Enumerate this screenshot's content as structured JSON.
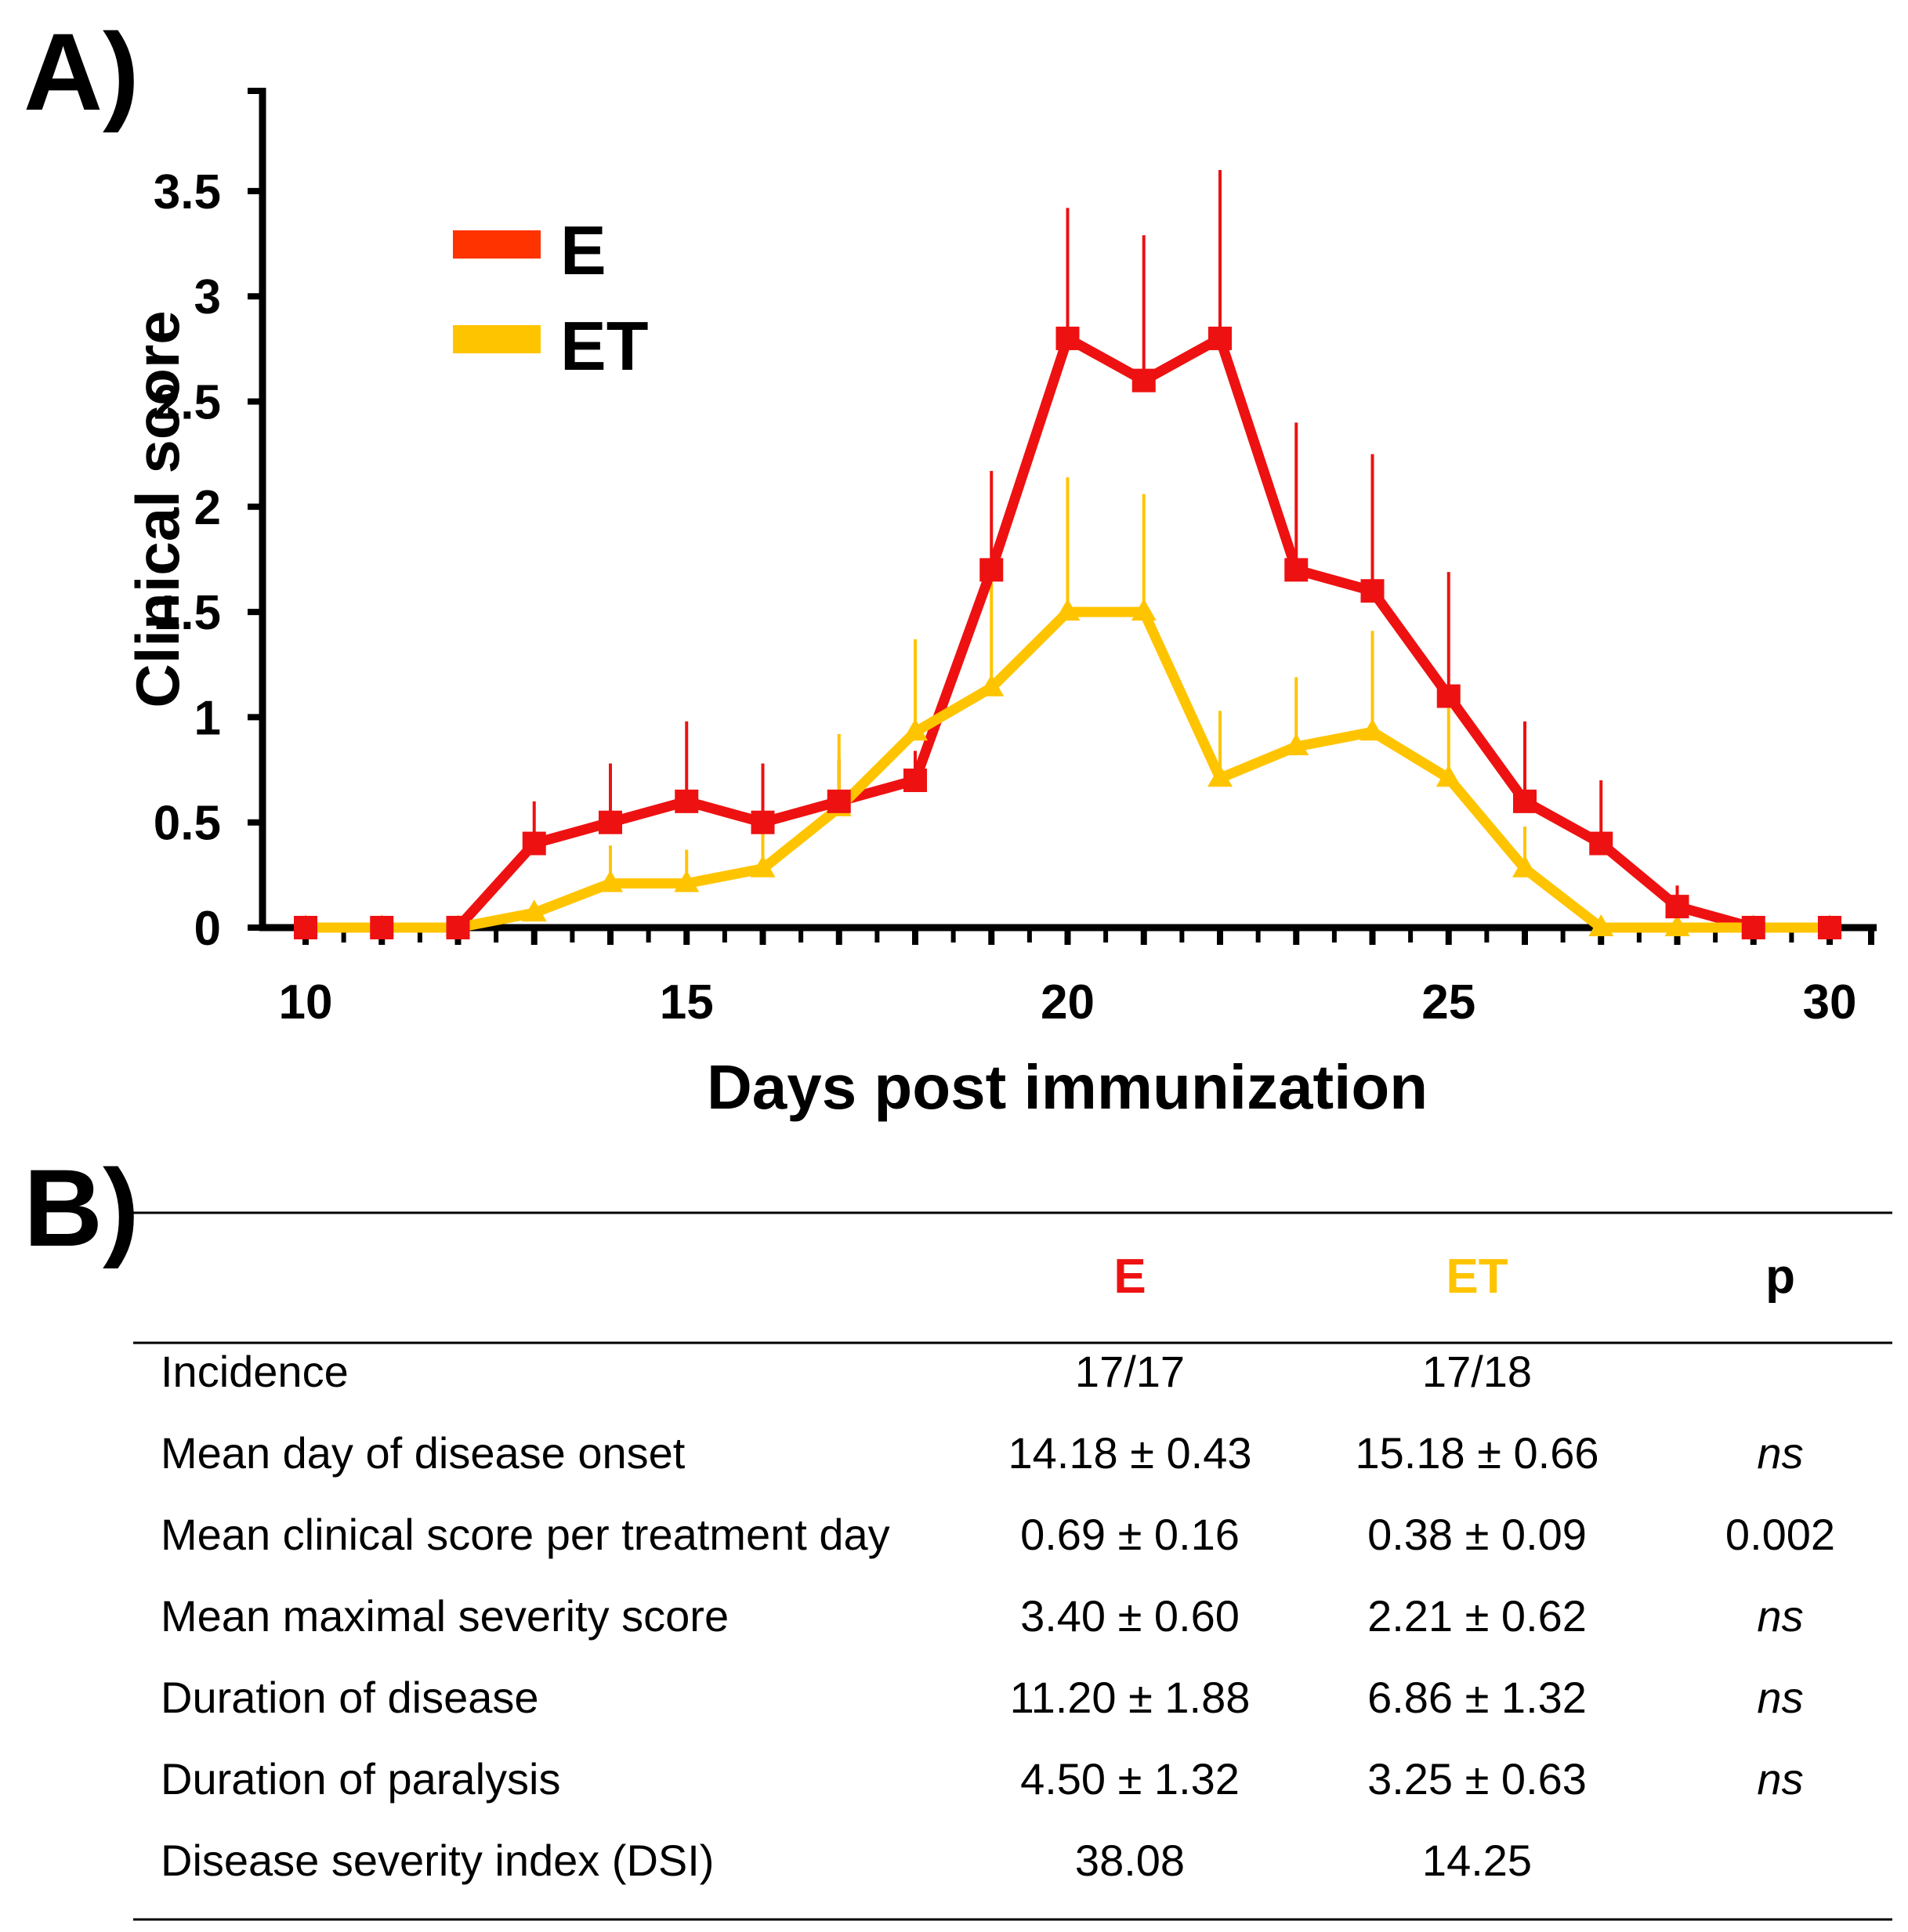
{
  "panel_a_label": "A)",
  "panel_b_label": "B)",
  "chart_data": {
    "type": "line",
    "xlabel": "Days post immunization",
    "ylabel": "Clinical score",
    "xlim": [
      9.5,
      30.5
    ],
    "ylim": [
      0,
      4
    ],
    "x_ticks": [
      10,
      15,
      20,
      25,
      30
    ],
    "y_ticks": [
      0,
      0.5,
      1,
      1.5,
      2,
      2.5,
      3,
      3.5
    ],
    "y_tick_labels": [
      "0",
      "0.5",
      "1",
      "1.5",
      "2",
      "2.5",
      "3",
      "3.5"
    ],
    "x": [
      10,
      11,
      12,
      13,
      14,
      15,
      16,
      17,
      18,
      19,
      20,
      21,
      22,
      23,
      24,
      25,
      26,
      27,
      28,
      29,
      30
    ],
    "series": [
      {
        "name": "E",
        "color": "#ee1111",
        "marker": "square",
        "values": [
          0,
          0,
          0,
          0.4,
          0.5,
          0.6,
          0.5,
          0.6,
          0.7,
          1.7,
          2.8,
          2.6,
          2.8,
          1.7,
          1.6,
          1.1,
          0.6,
          0.4,
          0.1,
          0,
          0
        ],
        "error": [
          0,
          0,
          0,
          0.2,
          0.28,
          0.38,
          0.28,
          0.2,
          0.14,
          0.47,
          0.62,
          0.69,
          0.8,
          0.7,
          0.65,
          0.59,
          0.38,
          0.3,
          0.1,
          0,
          0
        ]
      },
      {
        "name": "ET",
        "color": "#ffc400",
        "marker": "triangle",
        "values": [
          0,
          0,
          0,
          0.07,
          0.21,
          0.21,
          0.28,
          0.57,
          0.93,
          1.14,
          1.5,
          1.5,
          0.71,
          0.86,
          0.93,
          0.71,
          0.28,
          0,
          0,
          0,
          0
        ],
        "error": [
          0,
          0,
          0,
          0.05,
          0.18,
          0.16,
          0.2,
          0.35,
          0.44,
          0.5,
          0.64,
          0.56,
          0.32,
          0.33,
          0.48,
          0.4,
          0.2,
          0,
          0,
          0,
          0
        ]
      }
    ],
    "legend": [
      "E",
      "ET"
    ],
    "legend_position": "top-left"
  },
  "table": {
    "headers": {
      "e": "E",
      "et": "ET",
      "p": "p"
    },
    "header_colors": {
      "e": "#ee1111",
      "et": "#ffc400"
    },
    "rows": [
      {
        "label": "Incidence",
        "e": "17/17",
        "et": "17/18",
        "p": ""
      },
      {
        "label": "Mean day of disease onset",
        "e": "14.18 ± 0.43",
        "et": "15.18 ± 0.66",
        "p": "ns"
      },
      {
        "label": "Mean clinical score per treatment day",
        "e": "0.69 ± 0.16",
        "et": "0.38 ± 0.09",
        "p": "0.002"
      },
      {
        "label": "Mean maximal severity score",
        "e": "3.40 ± 0.60",
        "et": "2.21 ± 0.62",
        "p": "ns"
      },
      {
        "label": "Duration of disease",
        "e": "11.20 ± 1.88",
        "et": "6.86 ± 1.32",
        "p": "ns"
      },
      {
        "label": "Duration of paralysis",
        "e": "4.50 ± 1.32",
        "et": "3.25 ± 0.63",
        "p": "ns"
      },
      {
        "label": "Disease severity index (DSI)",
        "e": "38.08",
        "et": "14.25",
        "p": ""
      }
    ]
  }
}
